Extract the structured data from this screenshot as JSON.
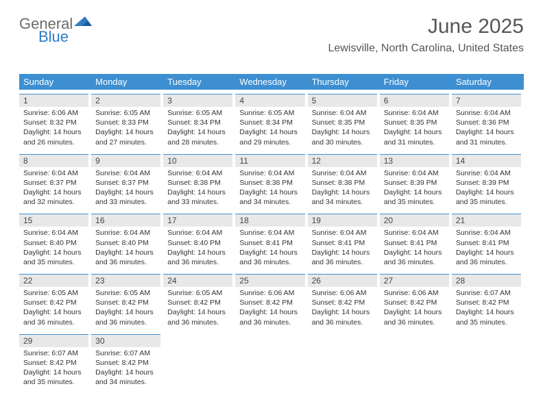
{
  "logo": {
    "text_general": "General",
    "text_blue": "Blue",
    "triangle_color": "#2f7bc4"
  },
  "header": {
    "month_title": "June 2025",
    "location": "Lewisville, North Carolina, United States"
  },
  "colors": {
    "header_bg": "#3d8fd1",
    "header_text": "#ffffff",
    "daynum_bg": "#e8e8e8",
    "daynum_border": "#3d8fd1",
    "body_text": "#333333"
  },
  "day_names": [
    "Sunday",
    "Monday",
    "Tuesday",
    "Wednesday",
    "Thursday",
    "Friday",
    "Saturday"
  ],
  "weeks": [
    [
      {
        "num": "1",
        "sunrise": "Sunrise: 6:06 AM",
        "sunset": "Sunset: 8:32 PM",
        "daylight": "Daylight: 14 hours and 26 minutes."
      },
      {
        "num": "2",
        "sunrise": "Sunrise: 6:05 AM",
        "sunset": "Sunset: 8:33 PM",
        "daylight": "Daylight: 14 hours and 27 minutes."
      },
      {
        "num": "3",
        "sunrise": "Sunrise: 6:05 AM",
        "sunset": "Sunset: 8:34 PM",
        "daylight": "Daylight: 14 hours and 28 minutes."
      },
      {
        "num": "4",
        "sunrise": "Sunrise: 6:05 AM",
        "sunset": "Sunset: 8:34 PM",
        "daylight": "Daylight: 14 hours and 29 minutes."
      },
      {
        "num": "5",
        "sunrise": "Sunrise: 6:04 AM",
        "sunset": "Sunset: 8:35 PM",
        "daylight": "Daylight: 14 hours and 30 minutes."
      },
      {
        "num": "6",
        "sunrise": "Sunrise: 6:04 AM",
        "sunset": "Sunset: 8:35 PM",
        "daylight": "Daylight: 14 hours and 31 minutes."
      },
      {
        "num": "7",
        "sunrise": "Sunrise: 6:04 AM",
        "sunset": "Sunset: 8:36 PM",
        "daylight": "Daylight: 14 hours and 31 minutes."
      }
    ],
    [
      {
        "num": "8",
        "sunrise": "Sunrise: 6:04 AM",
        "sunset": "Sunset: 8:37 PM",
        "daylight": "Daylight: 14 hours and 32 minutes."
      },
      {
        "num": "9",
        "sunrise": "Sunrise: 6:04 AM",
        "sunset": "Sunset: 8:37 PM",
        "daylight": "Daylight: 14 hours and 33 minutes."
      },
      {
        "num": "10",
        "sunrise": "Sunrise: 6:04 AM",
        "sunset": "Sunset: 8:38 PM",
        "daylight": "Daylight: 14 hours and 33 minutes."
      },
      {
        "num": "11",
        "sunrise": "Sunrise: 6:04 AM",
        "sunset": "Sunset: 8:38 PM",
        "daylight": "Daylight: 14 hours and 34 minutes."
      },
      {
        "num": "12",
        "sunrise": "Sunrise: 6:04 AM",
        "sunset": "Sunset: 8:38 PM",
        "daylight": "Daylight: 14 hours and 34 minutes."
      },
      {
        "num": "13",
        "sunrise": "Sunrise: 6:04 AM",
        "sunset": "Sunset: 8:39 PM",
        "daylight": "Daylight: 14 hours and 35 minutes."
      },
      {
        "num": "14",
        "sunrise": "Sunrise: 6:04 AM",
        "sunset": "Sunset: 8:39 PM",
        "daylight": "Daylight: 14 hours and 35 minutes."
      }
    ],
    [
      {
        "num": "15",
        "sunrise": "Sunrise: 6:04 AM",
        "sunset": "Sunset: 8:40 PM",
        "daylight": "Daylight: 14 hours and 35 minutes."
      },
      {
        "num": "16",
        "sunrise": "Sunrise: 6:04 AM",
        "sunset": "Sunset: 8:40 PM",
        "daylight": "Daylight: 14 hours and 36 minutes."
      },
      {
        "num": "17",
        "sunrise": "Sunrise: 6:04 AM",
        "sunset": "Sunset: 8:40 PM",
        "daylight": "Daylight: 14 hours and 36 minutes."
      },
      {
        "num": "18",
        "sunrise": "Sunrise: 6:04 AM",
        "sunset": "Sunset: 8:41 PM",
        "daylight": "Daylight: 14 hours and 36 minutes."
      },
      {
        "num": "19",
        "sunrise": "Sunrise: 6:04 AM",
        "sunset": "Sunset: 8:41 PM",
        "daylight": "Daylight: 14 hours and 36 minutes."
      },
      {
        "num": "20",
        "sunrise": "Sunrise: 6:04 AM",
        "sunset": "Sunset: 8:41 PM",
        "daylight": "Daylight: 14 hours and 36 minutes."
      },
      {
        "num": "21",
        "sunrise": "Sunrise: 6:04 AM",
        "sunset": "Sunset: 8:41 PM",
        "daylight": "Daylight: 14 hours and 36 minutes."
      }
    ],
    [
      {
        "num": "22",
        "sunrise": "Sunrise: 6:05 AM",
        "sunset": "Sunset: 8:42 PM",
        "daylight": "Daylight: 14 hours and 36 minutes."
      },
      {
        "num": "23",
        "sunrise": "Sunrise: 6:05 AM",
        "sunset": "Sunset: 8:42 PM",
        "daylight": "Daylight: 14 hours and 36 minutes."
      },
      {
        "num": "24",
        "sunrise": "Sunrise: 6:05 AM",
        "sunset": "Sunset: 8:42 PM",
        "daylight": "Daylight: 14 hours and 36 minutes."
      },
      {
        "num": "25",
        "sunrise": "Sunrise: 6:06 AM",
        "sunset": "Sunset: 8:42 PM",
        "daylight": "Daylight: 14 hours and 36 minutes."
      },
      {
        "num": "26",
        "sunrise": "Sunrise: 6:06 AM",
        "sunset": "Sunset: 8:42 PM",
        "daylight": "Daylight: 14 hours and 36 minutes."
      },
      {
        "num": "27",
        "sunrise": "Sunrise: 6:06 AM",
        "sunset": "Sunset: 8:42 PM",
        "daylight": "Daylight: 14 hours and 36 minutes."
      },
      {
        "num": "28",
        "sunrise": "Sunrise: 6:07 AM",
        "sunset": "Sunset: 8:42 PM",
        "daylight": "Daylight: 14 hours and 35 minutes."
      }
    ],
    [
      {
        "num": "29",
        "sunrise": "Sunrise: 6:07 AM",
        "sunset": "Sunset: 8:42 PM",
        "daylight": "Daylight: 14 hours and 35 minutes."
      },
      {
        "num": "30",
        "sunrise": "Sunrise: 6:07 AM",
        "sunset": "Sunset: 8:42 PM",
        "daylight": "Daylight: 14 hours and 34 minutes."
      },
      {
        "empty": true
      },
      {
        "empty": true
      },
      {
        "empty": true
      },
      {
        "empty": true
      },
      {
        "empty": true
      }
    ]
  ]
}
